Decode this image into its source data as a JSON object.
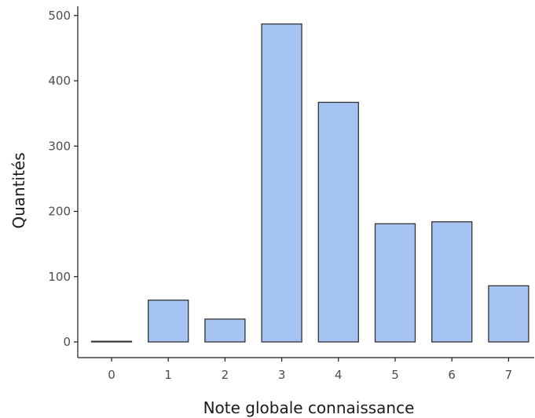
{
  "chart_data": {
    "type": "bar",
    "title": "",
    "xlabel": "Note globale connaissance",
    "ylabel": "Quantités",
    "categories": [
      "0",
      "1",
      "2",
      "3",
      "4",
      "5",
      "6",
      "7"
    ],
    "values": [
      1,
      64,
      35,
      487,
      367,
      181,
      184,
      86
    ],
    "ylim": [
      0,
      510
    ],
    "yticks": [
      0,
      100,
      200,
      300,
      400,
      500
    ],
    "grid": false,
    "bar_color": "#a6c4f2",
    "bar_edge_color": "#333333"
  }
}
